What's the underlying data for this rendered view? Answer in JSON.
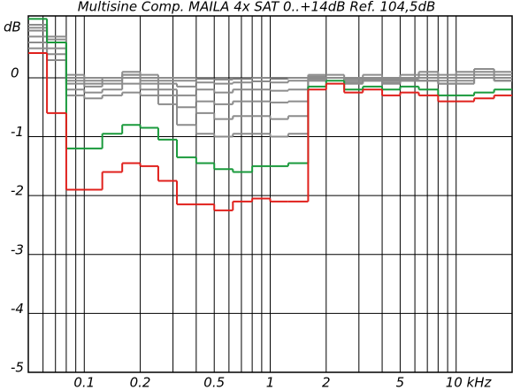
{
  "chart_data": {
    "type": "step",
    "title": "Multisine Comp. MAILA 4x SAT 0..+14dB Ref. 104,5dB",
    "y_label": "dB",
    "x_log": true,
    "xlim": [
      0.05,
      20
    ],
    "ylim": [
      -5,
      1.05
    ],
    "xticks": [
      0.1,
      0.2,
      0.5,
      1,
      2,
      5,
      {
        "value": 10,
        "label": "10 kHz"
      }
    ],
    "xgrid": [
      0.06,
      0.07,
      0.08,
      0.09,
      0.3,
      0.4,
      0.6,
      0.7,
      0.8,
      0.9,
      3,
      4,
      6,
      7,
      8,
      9
    ],
    "yticks": [
      0,
      -1,
      -2,
      -3,
      -4,
      -5
    ],
    "grid": true,
    "x": [
      0.05,
      0.063,
      0.08,
      0.1,
      0.125,
      0.16,
      0.2,
      0.25,
      0.315,
      0.4,
      0.5,
      0.63,
      0.8,
      1,
      1.25,
      1.6,
      2,
      2.5,
      3.15,
      4,
      5,
      6.3,
      8,
      10,
      12.5,
      16
    ],
    "series": [
      {
        "color": "#8c8c8c",
        "values": [
          0.5,
          0.3,
          0.05,
          0.0,
          0.0,
          0.05,
          0.05,
          0.0,
          0.0,
          -0.02,
          -0.03,
          -0.02,
          0.0,
          -0.02,
          0.0,
          0.05,
          0.05,
          0.0,
          0.05,
          0.0,
          0.05,
          0.1,
          0.05,
          0.1,
          0.15,
          0.1
        ]
      },
      {
        "color": "#8c8c8c",
        "values": [
          0.6,
          0.4,
          0.0,
          -0.05,
          0.0,
          0.1,
          0.0,
          -0.05,
          -0.05,
          -0.08,
          -0.1,
          -0.08,
          -0.06,
          -0.08,
          -0.05,
          0.02,
          0.0,
          -0.02,
          0.0,
          -0.03,
          0.0,
          0.05,
          0.0,
          0.05,
          0.1,
          0.05
        ]
      },
      {
        "color": "#8c8c8c",
        "values": [
          0.7,
          0.5,
          -0.05,
          -0.1,
          -0.05,
          0.05,
          -0.05,
          -0.1,
          -0.15,
          -0.2,
          -0.25,
          -0.2,
          -0.2,
          -0.22,
          -0.2,
          0.0,
          0.0,
          -0.05,
          -0.02,
          -0.05,
          -0.02,
          0.0,
          -0.05,
          0.0,
          0.05,
          0.0
        ]
      },
      {
        "color": "#8c8c8c",
        "values": [
          0.8,
          0.6,
          -0.1,
          -0.15,
          -0.1,
          0.0,
          -0.1,
          -0.2,
          -0.3,
          -0.4,
          -0.45,
          -0.4,
          -0.4,
          -0.42,
          -0.4,
          -0.02,
          0.0,
          -0.08,
          -0.05,
          -0.08,
          -0.05,
          -0.05,
          -0.1,
          -0.05,
          0.0,
          -0.05
        ]
      },
      {
        "color": "#8c8c8c",
        "values": [
          0.85,
          0.65,
          -0.2,
          -0.25,
          -0.2,
          -0.1,
          -0.2,
          -0.3,
          -0.5,
          -0.6,
          -0.7,
          -0.65,
          -0.65,
          -0.7,
          -0.65,
          -0.05,
          0.0,
          -0.1,
          -0.05,
          -0.1,
          -0.05,
          -0.05,
          -0.1,
          -0.1,
          0.0,
          -0.05
        ]
      },
      {
        "color": "#8c8c8c",
        "values": [
          0.9,
          0.7,
          -0.3,
          -0.35,
          -0.3,
          -0.25,
          -0.3,
          -0.45,
          -0.8,
          -0.95,
          -1.0,
          -0.95,
          -0.95,
          -1.0,
          -0.95,
          -0.05,
          0.0,
          -0.1,
          -0.05,
          -0.1,
          -0.05,
          -0.05,
          -0.1,
          -0.1,
          0.0,
          -0.05
        ]
      },
      {
        "color": "#1a9a3c",
        "values": [
          1.0,
          0.6,
          -1.2,
          -1.2,
          -0.95,
          -0.8,
          -0.85,
          -1.05,
          -1.35,
          -1.45,
          -1.55,
          -1.6,
          -1.5,
          -1.5,
          -1.45,
          -0.15,
          -0.05,
          -0.2,
          -0.15,
          -0.2,
          -0.15,
          -0.2,
          -0.3,
          -0.3,
          -0.25,
          -0.2
        ]
      },
      {
        "color": "#e0201c",
        "values": [
          0.42,
          -0.6,
          -1.9,
          -1.9,
          -1.6,
          -1.45,
          -1.5,
          -1.75,
          -2.15,
          -2.15,
          -2.25,
          -2.1,
          -2.05,
          -2.1,
          -2.1,
          -0.2,
          -0.1,
          -0.25,
          -0.2,
          -0.3,
          -0.25,
          -0.3,
          -0.4,
          -0.4,
          -0.35,
          -0.3
        ]
      }
    ]
  }
}
